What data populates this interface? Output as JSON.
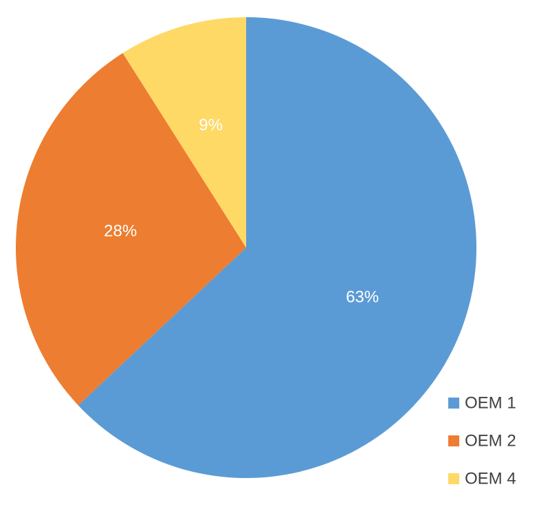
{
  "chart_data": {
    "type": "pie",
    "categories": [
      "OEM 1",
      "OEM 2",
      "OEM 4"
    ],
    "values": [
      63,
      28,
      9
    ],
    "value_labels": [
      "63%",
      "28%",
      "9%"
    ],
    "colors": [
      "#5b9bd5",
      "#ed7d31",
      "#ffd966"
    ],
    "legend": "bottom-right"
  }
}
